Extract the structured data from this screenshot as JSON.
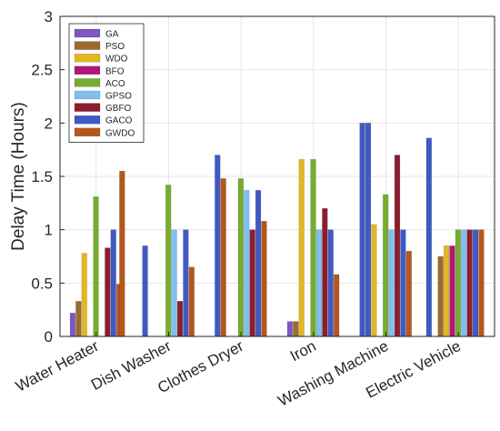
{
  "chart_data": {
    "type": "bar",
    "ylabel": "Delay Time (Hours)",
    "xlabel": "",
    "ylim": [
      0,
      3
    ],
    "yticks": [
      "0",
      "0.5",
      "1",
      "1.5",
      "2",
      "2.5",
      "3"
    ],
    "grid": true,
    "legend_position": "top-left",
    "categories": [
      "Water Heater",
      "Dish Washer",
      "Clothes Dryer",
      "Iron",
      "Washing Machine",
      "Electric Vehicle"
    ],
    "series": [
      {
        "name": "GA",
        "color": "#7E57C2",
        "values": [
          0.22,
          0,
          0,
          0.14,
          0,
          0
        ]
      },
      {
        "name": "PSO",
        "color": "#9B6A2E",
        "values": [
          0.33,
          0,
          0,
          0.14,
          0,
          0.75
        ]
      },
      {
        "name": "WDO",
        "color": "#E3B722",
        "values": [
          0.78,
          0,
          0,
          1.66,
          1.05,
          0.85
        ]
      },
      {
        "name": "BFO",
        "color": "#B0177A",
        "values": [
          0,
          0,
          0,
          0,
          0,
          0.85
        ]
      },
      {
        "name": "ACO",
        "color": "#77AC30",
        "values": [
          1.31,
          1.42,
          1.48,
          1.66,
          1.33,
          1.0
        ]
      },
      {
        "name": "GPSO",
        "color": "#7FBFEF",
        "values": [
          0,
          1.0,
          1.37,
          1.0,
          1.0,
          1.0
        ]
      },
      {
        "name": "GBFO",
        "color": "#8B1E2E",
        "values": [
          0.83,
          0.33,
          1.0,
          1.2,
          1.7,
          1.0
        ]
      },
      {
        "name": "GACO",
        "color": "#4159C4",
        "values": [
          1.0,
          1.0,
          1.37,
          1.0,
          1.0,
          1.0
        ]
      },
      {
        "name": "GWDO",
        "color": "#B5561C",
        "values": [
          0.49,
          0.65,
          1.08,
          0.58,
          0.8,
          1.0
        ]
      }
    ],
    "extra_bars": [
      {
        "color": "#4159C4",
        "category_index": 1,
        "value": 0.85,
        "slot": 0
      },
      {
        "color": "#4159C4",
        "category_index": 2,
        "value": 1.7,
        "slot": 0
      },
      {
        "color": "#B5561C",
        "category_index": 2,
        "value": 1.48,
        "slot": 1
      },
      {
        "color": "#B5561C",
        "category_index": 0,
        "value": 1.55,
        "slot": 8.5
      },
      {
        "color": "#4159C4",
        "category_index": 4,
        "value": 2.0,
        "slot": 0
      },
      {
        "color": "#4159C4",
        "category_index": 4,
        "value": 2.0,
        "slot": 1
      },
      {
        "color": "#4159C4",
        "category_index": 5,
        "value": 1.86,
        "slot": -1
      }
    ]
  }
}
